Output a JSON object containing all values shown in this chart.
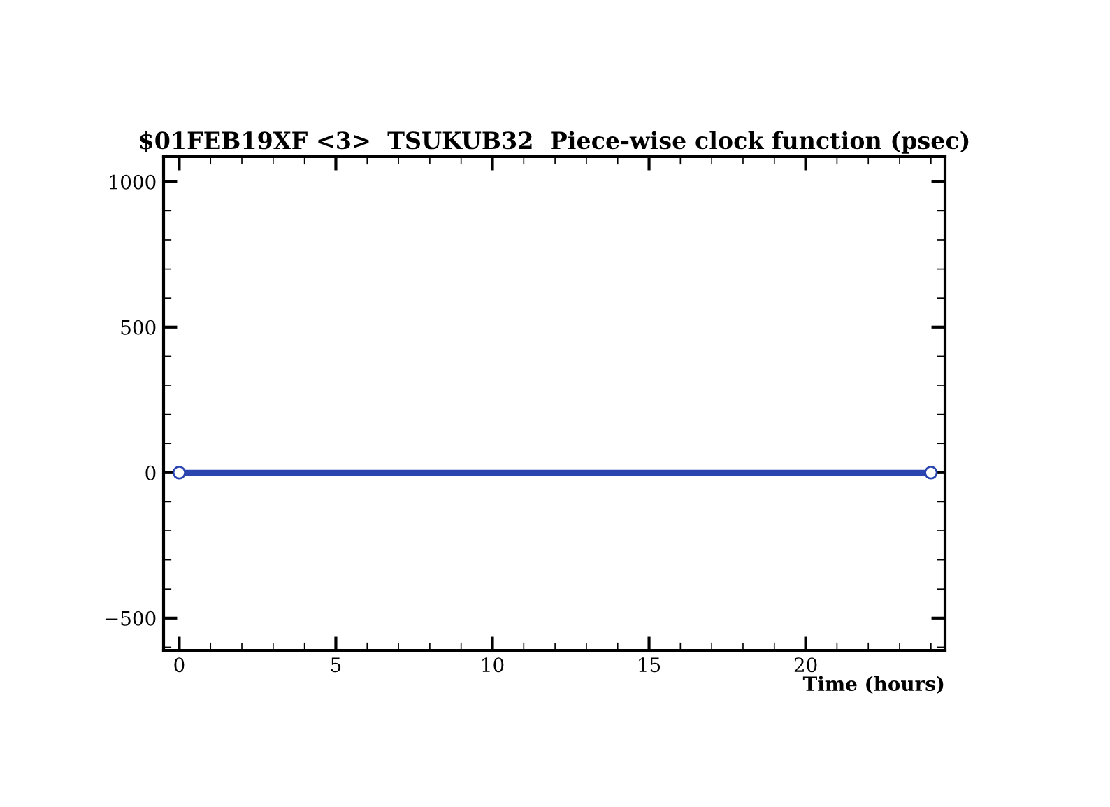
{
  "chart_data": {
    "type": "line",
    "title": "$01FEB19XF <3>  TSUKUB32  Piece-wise clock function (psec)",
    "xlabel": "Time (hours)",
    "x": [
      0,
      24
    ],
    "series": [
      {
        "color": "#2a45b0",
        "values": [
          0,
          0
        ]
      }
    ],
    "marker": "circle",
    "line_style": "solid",
    "grid": false,
    "legend": false,
    "xlim": [
      -0.5,
      24.45
    ],
    "xticks": [
      0,
      5,
      10,
      15,
      20
    ],
    "ylim": [
      -611,
      1086
    ],
    "yticks": [
      -500,
      0,
      500,
      1000
    ]
  }
}
